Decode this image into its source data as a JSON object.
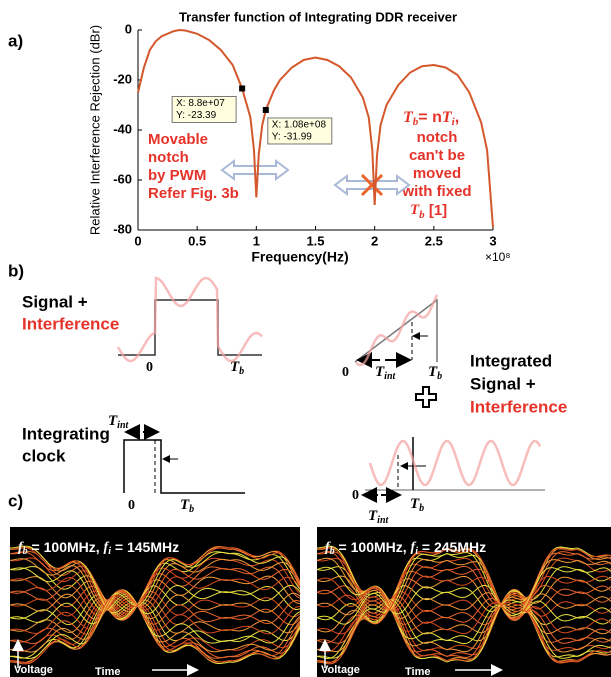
{
  "panel_labels": [
    "a)",
    "b)",
    "c)"
  ],
  "chart_data": {
    "type": "line",
    "title": "Transfer function of Integrating DDR receiver",
    "x_label": "Frequency(Hz)",
    "y_label": "Relative Interference Rejection (dBr)",
    "x_scale_label": "×10⁸",
    "x": [
      0,
      0.05,
      0.1,
      0.15,
      0.2,
      0.3,
      0.35,
      0.4,
      0.5,
      0.6,
      0.7,
      0.8,
      0.88,
      0.95,
      0.98,
      1.0,
      1.02,
      1.05,
      1.08,
      1.15,
      1.2,
      1.3,
      1.4,
      1.5,
      1.6,
      1.7,
      1.8,
      1.9,
      1.95,
      1.98,
      2.0,
      2.02,
      2.05,
      2.1,
      2.2,
      2.3,
      2.4,
      2.5,
      2.6,
      2.7,
      2.8,
      2.9,
      2.95,
      3.0
    ],
    "series": [
      {
        "color": "#d4582c",
        "values": [
          -25,
          -15,
          -8,
          -4.5,
          -2.5,
          -0.5,
          0,
          -0.2,
          -1.5,
          -4,
          -8,
          -14,
          -23.39,
          -35,
          -48,
          -67,
          -50,
          -38,
          -31.99,
          -24,
          -20,
          -15,
          -12,
          -11,
          -12,
          -14.5,
          -19,
          -27,
          -35,
          -48,
          -70,
          -50,
          -38,
          -30,
          -22,
          -17,
          -14.5,
          -14,
          -15,
          -18,
          -25,
          -37,
          -48,
          -79
        ]
      }
    ],
    "xlim": [
      0,
      3
    ],
    "ylim": [
      -80,
      0
    ],
    "xticks": [
      0,
      0.5,
      1,
      1.5,
      2,
      2.5,
      3
    ],
    "yticks": [
      -80,
      -60,
      -40,
      -20,
      0
    ],
    "datatips": [
      {
        "x": 0.88,
        "y": -23.39,
        "lines": [
          "X: 8.8e+07",
          "Y: -23.39"
        ]
      },
      {
        "x": 1.08,
        "y": -31.99,
        "lines": [
          "X: 1.08e+08",
          "Y: -31.99"
        ]
      }
    ],
    "note_left": [
      "Movable",
      "notch",
      "by PWM",
      "Refer Fig. 3b"
    ],
    "note_right": {
      "head": [
        "T",
        "b",
        "= n",
        "T",
        "i",
        ","
      ],
      "lines": [
        "notch",
        "can't be",
        "moved",
        "with fixed"
      ],
      "tail": [
        "T",
        "b",
        " [1]"
      ]
    }
  },
  "diagram": {
    "signal_label": [
      "Signal +",
      "Interference"
    ],
    "zero": "0",
    "T": "T",
    "b": "b",
    "int": "int",
    "clock_label": [
      "Integrating",
      "clock"
    ],
    "integrated_label": [
      "Integrated",
      "Signal +",
      "Interference"
    ]
  },
  "eye_diagrams": [
    {
      "parts": [
        "f",
        "b",
        " = 100MHz, ",
        "f",
        "i",
        " = 145MHz"
      ]
    },
    {
      "parts": [
        "f",
        "b",
        " = 100MHz, ",
        "f",
        "i",
        " = 245MHz"
      ]
    }
  ],
  "eye_axis": {
    "voltage": "Voltage",
    "time": "Time"
  }
}
